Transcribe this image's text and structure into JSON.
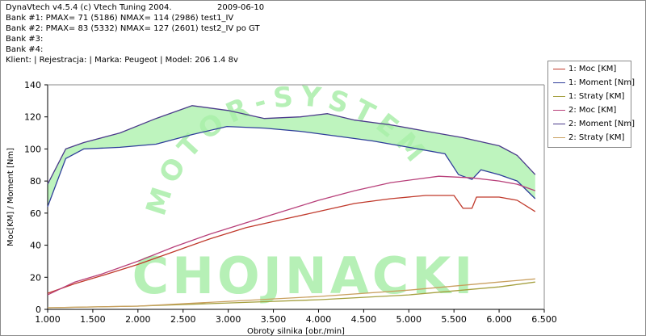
{
  "header": {
    "line1": "DynaVtech v4.5.4 (c) Vtech Tuning 2004.",
    "date": "2009-06-10",
    "bank1": "Bank #1: PMAX= 71 (5186)     NMAX= 114 (2986)   test1_IV",
    "bank2": "Bank #2: PMAX= 83 (5332)     NMAX= 127 (2601)   test2_IV po GT",
    "bank3": "Bank #3:",
    "bank4": "Bank #4:",
    "client": "Klient:   | Rejestracja:                    | Marka: Peugeot | Model: 206 1.4 8v"
  },
  "watermark": "CHOJNACKI",
  "watermark_arc": "MOTOR-SYSTEM",
  "colors": {
    "moc1": "#c0392b",
    "moment1": "#2e3d9a",
    "straty1": "#a5a040",
    "moc2": "#b8407a",
    "moment2": "#4a3a8a",
    "straty2": "#c9a060",
    "band": "#a8f0a8",
    "watermark": "#b6f0b6"
  },
  "chart_data": {
    "type": "line",
    "xlabel": "Obroty silnika [obr./min]",
    "ylabel": "Moc[KM] / Moment [Nm]",
    "xlim": [
      1000,
      6500
    ],
    "ylim": [
      0,
      140
    ],
    "xticks": [
      "1.000",
      "1.500",
      "2.000",
      "2.500",
      "3.000",
      "3.500",
      "4.000",
      "4.500",
      "5.000",
      "5.500",
      "6.000",
      "6.500"
    ],
    "yticks": [
      "0",
      "20",
      "40",
      "60",
      "80",
      "100",
      "120",
      "140"
    ],
    "grid": false,
    "legend_position": "top-right",
    "series": [
      {
        "name": "1: Moc [KM]",
        "color_key": "moc1",
        "x": [
          1000,
          1300,
          1600,
          2000,
          2400,
          2800,
          3200,
          3600,
          4000,
          4400,
          4800,
          5186,
          5500,
          5600,
          5700,
          5750,
          5800,
          6000,
          6200,
          6400
        ],
        "values": [
          10,
          16,
          21,
          28,
          36,
          44,
          51,
          56,
          61,
          66,
          69,
          71,
          71,
          63,
          63,
          70,
          70,
          70,
          68,
          61
        ]
      },
      {
        "name": "1: Moment [Nm]",
        "color_key": "moment1",
        "x": [
          1000,
          1200,
          1400,
          1800,
          2200,
          2600,
          2986,
          3400,
          3800,
          4200,
          4600,
          5000,
          5400,
          5550,
          5650,
          5700,
          5800,
          6000,
          6200,
          6400
        ],
        "values": [
          64,
          94,
          100,
          101,
          103,
          109,
          114,
          113,
          111,
          108,
          105,
          101,
          97,
          84,
          82,
          81,
          87,
          84,
          80,
          69
        ]
      },
      {
        "name": "1: Straty [KM]",
        "color_key": "straty1",
        "x": [
          1000,
          2000,
          3000,
          4000,
          5000,
          6000,
          6400
        ],
        "values": [
          1,
          2,
          4,
          6,
          9,
          14,
          17
        ]
      },
      {
        "name": "2: Moc [KM]",
        "color_key": "moc2",
        "x": [
          1000,
          1300,
          1600,
          2000,
          2400,
          2800,
          3200,
          3600,
          4000,
          4400,
          4800,
          5332,
          5700,
          6000,
          6200,
          6400
        ],
        "values": [
          9,
          17,
          22,
          30,
          39,
          47,
          54,
          61,
          68,
          74,
          79,
          83,
          82,
          80,
          78,
          74
        ]
      },
      {
        "name": "2: Moment [Nm]",
        "color_key": "moment2",
        "x": [
          1000,
          1200,
          1400,
          1800,
          2200,
          2601,
          3000,
          3400,
          3800,
          4100,
          4400,
          4800,
          5200,
          5600,
          6000,
          6200,
          6400
        ],
        "values": [
          78,
          100,
          104,
          110,
          119,
          127,
          124,
          119,
          120,
          122,
          118,
          115,
          111,
          107,
          102,
          96,
          84
        ]
      },
      {
        "name": "2: Straty [KM]",
        "color_key": "straty2",
        "x": [
          1000,
          2000,
          3000,
          4000,
          5000,
          6000,
          6400
        ],
        "values": [
          1,
          2,
          5,
          8,
          12,
          17,
          19
        ]
      }
    ]
  }
}
